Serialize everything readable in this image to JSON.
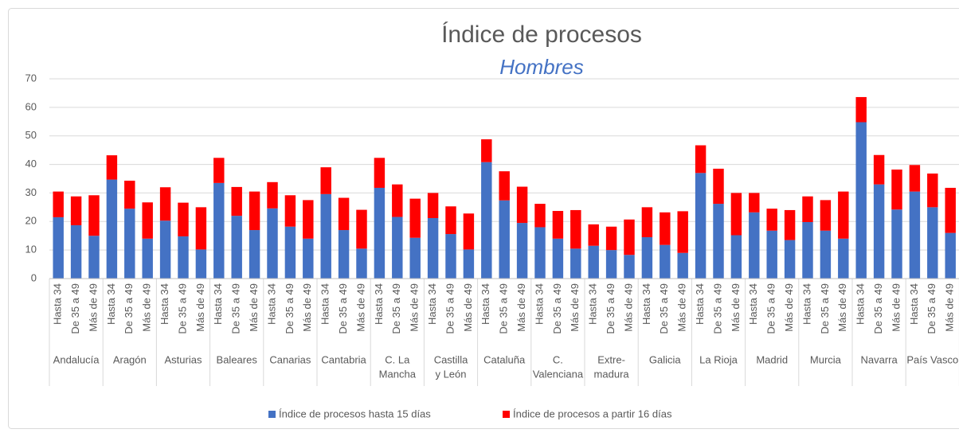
{
  "chart_data": {
    "type": "stacked_bar",
    "title": "Índice de procesos",
    "subtitle": "Hombres",
    "groups": [
      {
        "label": [
          "Andalucía"
        ],
        "categories": [
          "Hasta 34",
          "De 35 a 49",
          "Más de 49"
        ]
      },
      {
        "label": [
          "Aragón"
        ],
        "categories": [
          "Hasta 34",
          "De 35 a 49",
          "Más de 49"
        ]
      },
      {
        "label": [
          "Asturias"
        ],
        "categories": [
          "Hasta 34",
          "De 35 a 49",
          "Más de 49"
        ]
      },
      {
        "label": [
          "Baleares"
        ],
        "categories": [
          "Hasta 34",
          "De 35 a 49",
          "Más de 49"
        ]
      },
      {
        "label": [
          "Canarias"
        ],
        "categories": [
          "Hasta 34",
          "De 35 a 49",
          "Más de 49"
        ]
      },
      {
        "label": [
          "Cantabria"
        ],
        "categories": [
          "Hasta 34",
          "De 35 a 49",
          "Más de 49"
        ]
      },
      {
        "label": [
          "C. La",
          "Mancha"
        ],
        "categories": [
          "Hasta 34",
          "De 35 a 49",
          "Más de 49"
        ]
      },
      {
        "label": [
          "Castilla",
          "y León"
        ],
        "categories": [
          "Hasta 34",
          "De 35 a 49",
          "Más de 49"
        ]
      },
      {
        "label": [
          "Cataluña"
        ],
        "categories": [
          "Hasta 34",
          "De 35 a 49",
          "Más de 49"
        ]
      },
      {
        "label": [
          "C.",
          "Valenciana"
        ],
        "categories": [
          "Hasta 34",
          "De 35 a 49",
          "Más de 49"
        ]
      },
      {
        "label": [
          "Extre-",
          "madura"
        ],
        "categories": [
          "Hasta 34",
          "De 35 a 49",
          "Más de 49"
        ]
      },
      {
        "label": [
          "Galicia"
        ],
        "categories": [
          "Hasta 34",
          "De 35 a 49",
          "Más de 49"
        ]
      },
      {
        "label": [
          "La Rioja"
        ],
        "categories": [
          "Hasta 34",
          "De 35 a 49",
          "Más de 49"
        ]
      },
      {
        "label": [
          "Madrid"
        ],
        "categories": [
          "Hasta 34",
          "De 35 a 49",
          "Más de 49"
        ]
      },
      {
        "label": [
          "Murcia"
        ],
        "categories": [
          "Hasta 34",
          "De 35 a 49",
          "Más de 49"
        ]
      },
      {
        "label": [
          "Navarra"
        ],
        "categories": [
          "Hasta 34",
          "De 35 a 49",
          "Más de 49"
        ]
      },
      {
        "label": [
          "País Vasco"
        ],
        "categories": [
          "Hasta 34",
          "De 35 a 49",
          "Más de 49"
        ]
      }
    ],
    "series": [
      {
        "name": "Índice de procesos hasta 15 días",
        "color": "#4472c4",
        "values": [
          21.5,
          18.7,
          15,
          34.7,
          24.5,
          14,
          20.3,
          14.8,
          10.2,
          33.5,
          22,
          17,
          24.6,
          18.2,
          14,
          29.6,
          17,
          10.5,
          31.8,
          21.6,
          14.3,
          21.2,
          15.6,
          10.2,
          40.8,
          27.4,
          19.5,
          18,
          14,
          10.5,
          11.5,
          10,
          8.3,
          14.5,
          11.8,
          9,
          37,
          26.2,
          15.2,
          23.2,
          16.8,
          13.5,
          19.8,
          16.8,
          14,
          54.8,
          33,
          24.2,
          30.5,
          25,
          16
        ]
      },
      {
        "name": "Índice de procesos a partir 16 días",
        "color": "#ff0000",
        "values": [
          9,
          10.1,
          14.2,
          8.5,
          9.8,
          12.7,
          11.7,
          11.8,
          14.8,
          8.8,
          10.1,
          13.5,
          9.2,
          11,
          13.5,
          9.4,
          11.3,
          13.6,
          10.5,
          11.4,
          13.7,
          8.8,
          9.7,
          12.6,
          8,
          10.2,
          12.7,
          8.2,
          9.7,
          13.5,
          7.5,
          8.2,
          12.4,
          10.5,
          11.4,
          14.6,
          9.7,
          12.3,
          14.8,
          6.8,
          7.7,
          10.5,
          9,
          10.7,
          16.5,
          8.8,
          10.3,
          14,
          9.3,
          11.8,
          15.8
        ]
      }
    ],
    "ylim": [
      0,
      70
    ],
    "yticks": [
      0,
      10,
      20,
      30,
      40,
      50,
      60,
      70
    ],
    "grid": true,
    "legend": "bottom"
  }
}
